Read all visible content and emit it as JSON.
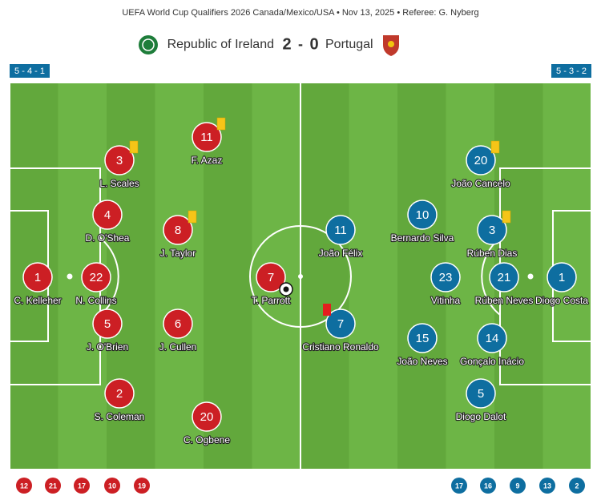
{
  "header": {
    "title": "UEFA World Cup Qualifiers 2026 Canada/Mexico/USA • Nov 13, 2025 • Referee: G. Nyberg"
  },
  "match": {
    "home_team": "Republic of Ireland",
    "home_score": 2,
    "score_separator": "-",
    "away_score": 0,
    "away_team": "Portugal"
  },
  "home": {
    "formation": "5 - 4 - 1",
    "players": [
      {
        "number": 1,
        "name": "C. Kelleher"
      },
      {
        "number": 22,
        "name": "N. Collins"
      },
      {
        "number": 4,
        "name": "D. O'Shea"
      },
      {
        "number": 3,
        "name": "L. Scales"
      },
      {
        "number": 5,
        "name": "J. O'Brien"
      },
      {
        "number": 2,
        "name": "S. Coleman"
      },
      {
        "number": 8,
        "name": "J. Taylor"
      },
      {
        "number": 6,
        "name": "J. Cullen"
      },
      {
        "number": 11,
        "name": "F. Azaz"
      },
      {
        "number": 20,
        "name": "C. Ogbene"
      },
      {
        "number": 7,
        "name": "T. Parrott"
      }
    ],
    "substitutes": [
      12,
      21,
      17,
      10,
      19
    ]
  },
  "away": {
    "formation": "5 - 3 - 2",
    "players": [
      {
        "number": 1,
        "name": "Diogo Costa"
      },
      {
        "number": 21,
        "name": "Rúben Neves"
      },
      {
        "number": 3,
        "name": "Rúben Dias"
      },
      {
        "number": 20,
        "name": "João Cancelo"
      },
      {
        "number": 14,
        "name": "Gonçalo Inácio"
      },
      {
        "number": 5,
        "name": "Diogo Dalot"
      },
      {
        "number": 23,
        "name": "Vitinha"
      },
      {
        "number": 10,
        "name": "Bernardo Silva"
      },
      {
        "number": 15,
        "name": "João Neves"
      },
      {
        "number": 11,
        "name": "João Félix"
      },
      {
        "number": 7,
        "name": "Cristiano Ronaldo"
      }
    ],
    "substitutes": [
      17,
      16,
      9,
      13,
      2
    ]
  }
}
